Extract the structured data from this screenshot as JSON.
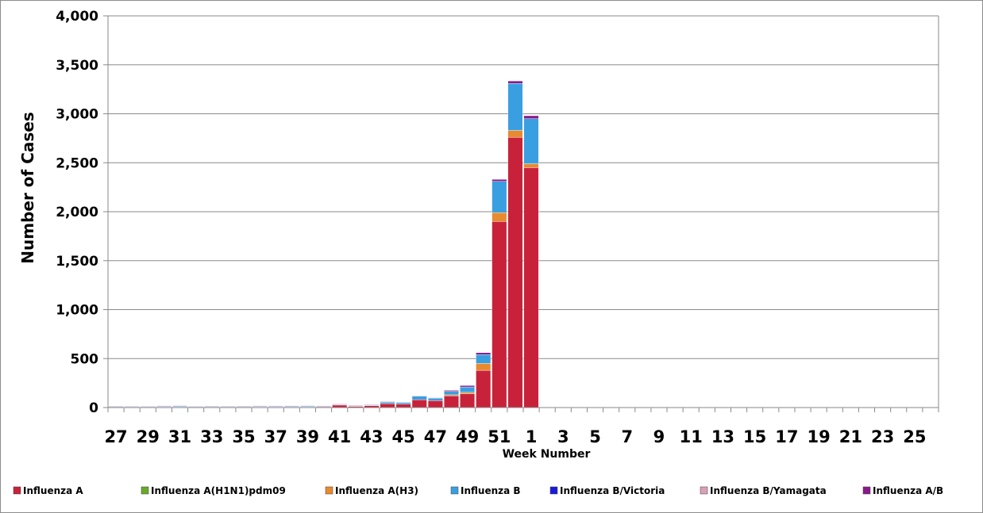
{
  "chart_data": {
    "type": "bar",
    "stacked": true,
    "title": "",
    "xlabel": "Week Number",
    "ylabel": "Number of Cases",
    "ylim": [
      0,
      4000
    ],
    "yticks": [
      "0",
      "500",
      "1,000",
      "1,500",
      "2,000",
      "2,500",
      "3,000",
      "3,500",
      "4,000"
    ],
    "grid": "horizontal",
    "legend_position": "bottom",
    "categories": [
      "27",
      "28",
      "29",
      "30",
      "31",
      "32",
      "33",
      "34",
      "35",
      "36",
      "37",
      "38",
      "39",
      "40",
      "41",
      "42",
      "43",
      "44",
      "45",
      "46",
      "47",
      "48",
      "49",
      "50",
      "51",
      "52",
      "1",
      "2",
      "3",
      "4",
      "5",
      "6",
      "7",
      "8",
      "9",
      "10",
      "11",
      "12",
      "13",
      "14",
      "15",
      "16",
      "17",
      "18",
      "19",
      "20",
      "21",
      "22",
      "23",
      "24",
      "25",
      "26"
    ],
    "xtick_labels": [
      "27",
      "29",
      "31",
      "33",
      "35",
      "37",
      "39",
      "41",
      "43",
      "45",
      "47",
      "49",
      "51",
      "1",
      "3",
      "5",
      "7",
      "9",
      "11",
      "13",
      "15",
      "17",
      "19",
      "21",
      "23",
      "25"
    ],
    "series": [
      {
        "name": "Influenza A",
        "color": "#c8223a",
        "values": [
          4,
          3,
          5,
          6,
          7,
          5,
          4,
          5,
          4,
          6,
          6,
          7,
          7,
          8,
          25,
          12,
          18,
          40,
          35,
          80,
          70,
          120,
          140,
          380,
          1900,
          2760,
          2450,
          0,
          0,
          0,
          0,
          0,
          0,
          0,
          0,
          0,
          0,
          0,
          0,
          0,
          0,
          0,
          0,
          0,
          0,
          0,
          0,
          0,
          0,
          0,
          0,
          0
        ]
      },
      {
        "name": "Influenza A(H1N1)pdm09",
        "color": "#6aaa2a",
        "values": [
          0,
          0,
          0,
          0,
          0,
          0,
          0,
          0,
          0,
          0,
          0,
          0,
          0,
          0,
          0,
          0,
          0,
          0,
          0,
          0,
          0,
          0,
          0,
          0,
          0,
          0,
          0,
          0,
          0,
          0,
          0,
          0,
          0,
          0,
          0,
          0,
          0,
          0,
          0,
          0,
          0,
          0,
          0,
          0,
          0,
          0,
          0,
          0,
          0,
          0,
          0,
          0
        ]
      },
      {
        "name": "Influenza A(H3)",
        "color": "#e88a2e",
        "values": [
          0,
          0,
          0,
          0,
          0,
          0,
          0,
          0,
          0,
          0,
          0,
          0,
          0,
          0,
          0,
          0,
          0,
          0,
          0,
          0,
          0,
          10,
          15,
          70,
          90,
          70,
          40,
          0,
          0,
          0,
          0,
          0,
          0,
          0,
          0,
          0,
          0,
          0,
          0,
          0,
          0,
          0,
          0,
          0,
          0,
          0,
          0,
          0,
          0,
          0,
          0,
          0
        ]
      },
      {
        "name": "Influenza B",
        "color": "#3a9fe0",
        "values": [
          5,
          4,
          5,
          6,
          7,
          5,
          4,
          4,
          4,
          6,
          6,
          6,
          7,
          5,
          6,
          4,
          6,
          15,
          15,
          35,
          25,
          35,
          55,
          90,
          320,
          480,
          460,
          0,
          0,
          0,
          0,
          0,
          0,
          0,
          0,
          0,
          0,
          0,
          0,
          0,
          0,
          0,
          0,
          0,
          0,
          0,
          0,
          0,
          0,
          0,
          0,
          0
        ]
      },
      {
        "name": "Influenza B/Victoria",
        "color": "#1a1adc",
        "values": [
          0,
          0,
          0,
          0,
          0,
          0,
          0,
          0,
          0,
          0,
          0,
          0,
          0,
          0,
          0,
          0,
          0,
          0,
          0,
          0,
          0,
          0,
          0,
          0,
          0,
          0,
          0,
          0,
          0,
          0,
          0,
          0,
          0,
          0,
          0,
          0,
          0,
          0,
          0,
          0,
          0,
          0,
          0,
          0,
          0,
          0,
          0,
          0,
          0,
          0,
          0,
          0
        ]
      },
      {
        "name": "Influenza B/Yamagata",
        "color": "#d9a0b8",
        "values": [
          0,
          0,
          0,
          0,
          0,
          0,
          0,
          0,
          0,
          0,
          0,
          0,
          0,
          0,
          0,
          0,
          0,
          0,
          0,
          0,
          0,
          0,
          0,
          0,
          0,
          0,
          0,
          0,
          0,
          0,
          0,
          0,
          0,
          0,
          0,
          0,
          0,
          0,
          0,
          0,
          0,
          0,
          0,
          0,
          0,
          0,
          0,
          0,
          0,
          0,
          0,
          0
        ]
      },
      {
        "name": "Influenza A/B",
        "color": "#8a1a8a",
        "values": [
          1,
          1,
          1,
          1,
          1,
          1,
          1,
          1,
          1,
          1,
          1,
          1,
          1,
          1,
          2,
          1,
          2,
          5,
          5,
          5,
          5,
          10,
          15,
          20,
          20,
          25,
          30,
          0,
          0,
          0,
          0,
          0,
          0,
          0,
          0,
          0,
          0,
          0,
          0,
          0,
          0,
          0,
          0,
          0,
          0,
          0,
          0,
          0,
          0,
          0,
          0,
          0
        ]
      }
    ]
  }
}
